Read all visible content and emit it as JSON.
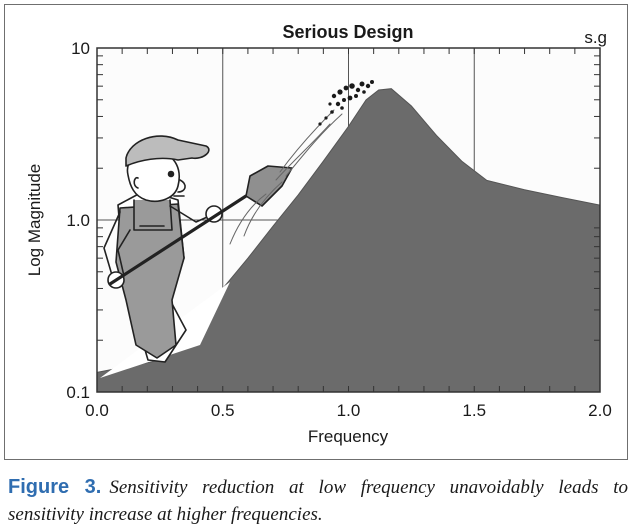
{
  "chart_data": {
    "type": "area",
    "title": "Serious Design",
    "corner_label": "s.g",
    "xlabel": "Frequency",
    "ylabel": "Log Magnitude",
    "xlim": [
      0.0,
      2.0
    ],
    "ylim": [
      0.1,
      10
    ],
    "y_scale": "log",
    "grid": true,
    "x_ticks": [
      "0.0",
      "0.5",
      "1.0",
      "1.5",
      "2.0"
    ],
    "y_ticks": [
      {
        "value": 0.1,
        "label": "0.1"
      },
      {
        "value": 1.0,
        "label": "1.0"
      },
      {
        "value": 10,
        "label": "10"
      }
    ],
    "series": [
      {
        "fill_color": "#6b6b6b",
        "x": [
          0.0,
          0.22,
          0.3,
          0.4,
          0.5,
          0.6,
          0.7,
          0.8,
          0.9,
          1.0,
          1.07,
          1.12,
          1.17,
          1.25,
          1.35,
          1.45,
          1.55,
          1.7,
          1.85,
          2.0
        ],
        "y": [
          0.13,
          0.15,
          0.17,
          0.28,
          0.4,
          0.6,
          0.92,
          1.4,
          2.2,
          3.5,
          5.0,
          5.7,
          5.8,
          4.6,
          3.1,
          2.2,
          1.7,
          1.5,
          1.35,
          1.22
        ]
      }
    ]
  },
  "caption": {
    "label": "Figure 3.",
    "text": "Sensitivity reduction at low frequency unavoidably leads to sensitivity increase at higher frequencies."
  }
}
